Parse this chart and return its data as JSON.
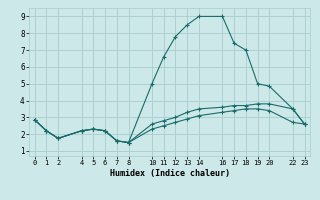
{
  "xlabel": "Humidex (Indice chaleur)",
  "background_color": "#cde8e8",
  "grid_color": "#aacccc",
  "line_color": "#1a6b6b",
  "xticks": [
    0,
    1,
    2,
    4,
    5,
    6,
    7,
    8,
    10,
    11,
    12,
    13,
    14,
    16,
    17,
    18,
    19,
    20,
    22,
    23
  ],
  "yticks": [
    1,
    2,
    3,
    4,
    5,
    6,
    7,
    8,
    9
  ],
  "xlim": [
    -0.5,
    23.5
  ],
  "ylim": [
    0.7,
    9.5
  ],
  "series": [
    {
      "x": [
        0,
        1,
        2,
        4,
        5,
        6,
        7,
        8,
        10,
        11,
        12,
        13,
        14,
        16,
        17,
        18,
        19,
        20,
        22,
        23
      ],
      "y": [
        2.85,
        2.2,
        1.75,
        2.2,
        2.3,
        2.2,
        1.6,
        1.5,
        5.0,
        6.6,
        7.8,
        8.5,
        9.0,
        9.0,
        7.4,
        7.0,
        5.0,
        4.85,
        3.5,
        2.6
      ]
    },
    {
      "x": [
        0,
        1,
        2,
        4,
        5,
        6,
        7,
        8,
        10,
        11,
        12,
        13,
        14,
        16,
        17,
        18,
        19,
        20,
        22,
        23
      ],
      "y": [
        2.85,
        2.2,
        1.75,
        2.2,
        2.3,
        2.2,
        1.6,
        1.5,
        2.6,
        2.8,
        3.0,
        3.3,
        3.5,
        3.6,
        3.7,
        3.7,
        3.8,
        3.8,
        3.5,
        2.6
      ]
    },
    {
      "x": [
        0,
        1,
        2,
        4,
        5,
        6,
        7,
        8,
        10,
        11,
        12,
        13,
        14,
        16,
        17,
        18,
        19,
        20,
        22,
        23
      ],
      "y": [
        2.85,
        2.2,
        1.75,
        2.2,
        2.3,
        2.2,
        1.6,
        1.5,
        2.3,
        2.5,
        2.7,
        2.9,
        3.1,
        3.3,
        3.4,
        3.5,
        3.5,
        3.4,
        2.7,
        2.6
      ]
    }
  ]
}
